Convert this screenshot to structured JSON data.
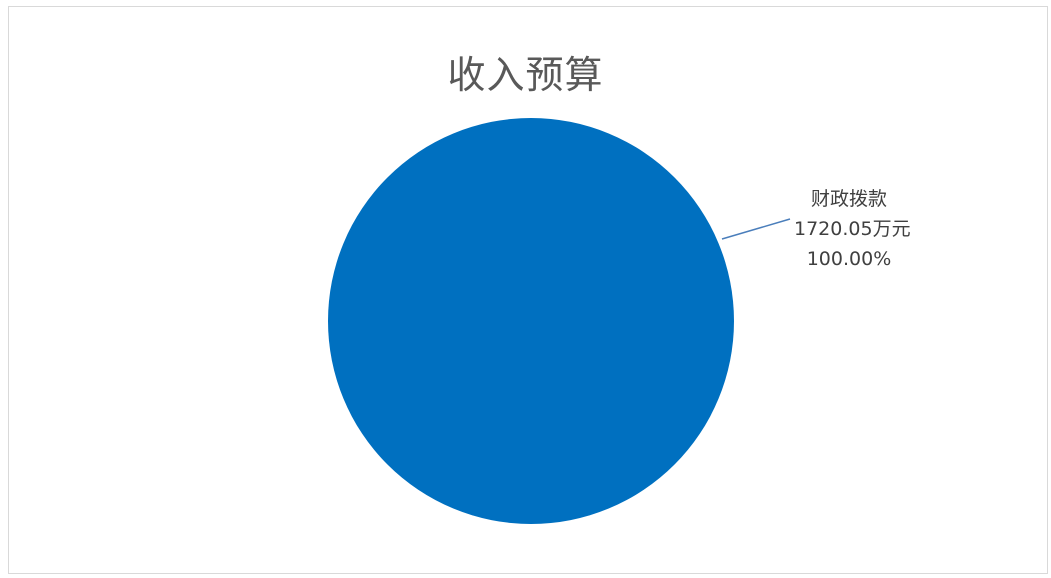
{
  "chart_data": {
    "type": "pie",
    "title": "收入预算",
    "slices": [
      {
        "name": "财政拨款",
        "value": 1720.05,
        "value_label": "1720.05万元",
        "percent_label": "100.00%",
        "color": "#0070c0"
      }
    ],
    "legend": "none"
  }
}
